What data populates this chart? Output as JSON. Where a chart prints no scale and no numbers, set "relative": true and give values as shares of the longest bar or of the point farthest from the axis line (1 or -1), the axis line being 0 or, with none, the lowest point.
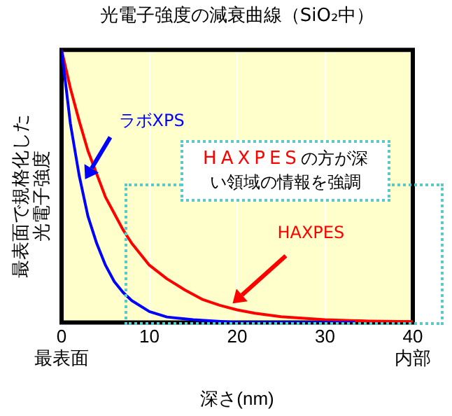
{
  "chart_data": {
    "type": "line",
    "title": "光電子強度の減衰曲線（SiO₂中）",
    "xlabel": "深さ(nm)",
    "ylabel": "最表面で規格化した光電子強度",
    "relative": true,
    "xlim": [
      0,
      40
    ],
    "xticks": [
      {
        "value": 0,
        "label": "0\n最表面"
      },
      10,
      20,
      30,
      {
        "value": 40,
        "label": "40\n内部"
      }
    ],
    "grid": "x",
    "legend": false,
    "marker": "none",
    "line_style": "solid",
    "annotations": [
      "HAXPESの方が深い領域の情報を強調"
    ],
    "series": [
      {
        "name": "ラボXPS",
        "color": "#0000ff",
        "x": [
          0,
          1,
          2,
          3,
          4,
          5,
          6,
          7,
          8,
          10,
          12,
          15,
          20,
          25,
          33.4
        ],
        "values": [
          1,
          0.73,
          0.54,
          0.39,
          0.29,
          0.21,
          0.15,
          0.11,
          0.08,
          0.04,
          0.02,
          0.01,
          0,
          0,
          0
        ]
      },
      {
        "name": "HAXPES",
        "color": "#ff0000",
        "x": [
          0,
          1,
          2,
          3,
          5,
          6,
          7,
          8,
          10,
          12,
          14,
          16,
          18,
          20,
          22,
          25,
          30,
          35,
          40
        ],
        "values": [
          1,
          0.86,
          0.74,
          0.63,
          0.46,
          0.4,
          0.34,
          0.29,
          0.21,
          0.16,
          0.12,
          0.085,
          0.063,
          0.046,
          0.034,
          0.021,
          0.01,
          0.005,
          0.003
        ]
      }
    ]
  }
}
